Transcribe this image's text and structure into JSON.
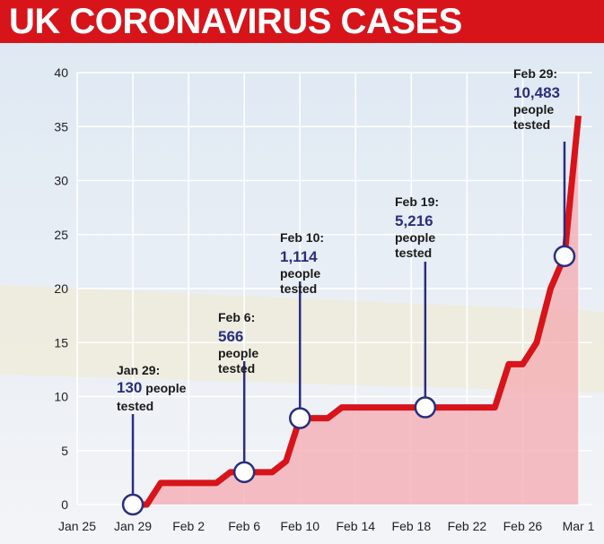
{
  "header": {
    "title": "UK CORONAVIRUS CASES"
  },
  "chart_data": {
    "type": "area",
    "title": "UK CORONAVIRUS CASES",
    "xlabel": "",
    "ylabel": "",
    "ylim": [
      0,
      40
    ],
    "yticks": [
      0,
      5,
      10,
      15,
      20,
      25,
      30,
      35,
      40
    ],
    "xticks": [
      "Jan 25",
      "Jan 29",
      "Feb 2",
      "Feb 6",
      "Feb 10",
      "Feb 14",
      "Feb 18",
      "Feb 22",
      "Feb 26",
      "Mar 1"
    ],
    "grid": true,
    "series": [
      {
        "x": [
          "2020-01-29",
          "2020-01-30",
          "2020-01-31",
          "2020-02-01",
          "2020-02-02",
          "2020-02-03",
          "2020-02-04",
          "2020-02-05",
          "2020-02-06",
          "2020-02-07",
          "2020-02-08",
          "2020-02-09",
          "2020-02-10",
          "2020-02-11",
          "2020-02-12",
          "2020-02-13",
          "2020-02-14",
          "2020-02-15",
          "2020-02-16",
          "2020-02-17",
          "2020-02-18",
          "2020-02-19",
          "2020-02-20",
          "2020-02-21",
          "2020-02-22",
          "2020-02-23",
          "2020-02-24",
          "2020-02-25",
          "2020-02-26",
          "2020-02-27",
          "2020-02-28",
          "2020-02-29",
          "2020-03-01"
        ],
        "values": [
          0,
          0,
          2,
          2,
          2,
          2,
          2,
          3,
          3,
          3,
          3,
          4,
          8,
          8,
          8,
          9,
          9,
          9,
          9,
          9,
          9,
          9,
          9,
          9,
          9,
          9,
          9,
          13,
          13,
          15,
          20,
          23,
          36
        ]
      }
    ],
    "annotations": [
      {
        "x": "2020-01-29",
        "y": 0,
        "date": "Jan 29:",
        "number": "130",
        "text": " people",
        "text2": "tested"
      },
      {
        "x": "2020-02-06",
        "y": 3,
        "date": "Feb 6:",
        "number": "566",
        "text": "people",
        "text2": "tested"
      },
      {
        "x": "2020-02-10",
        "y": 8,
        "date": "Feb 10:",
        "number": "1,114",
        "text": "people",
        "text2": "tested"
      },
      {
        "x": "2020-02-19",
        "y": 9,
        "date": "Feb 19:",
        "number": "5,216",
        "text": "people",
        "text2": "tested"
      },
      {
        "x": "2020-02-29",
        "y": 23,
        "date": "Feb 29:",
        "number": "10,483",
        "text": "people",
        "text2": "tested"
      }
    ],
    "colors": {
      "line": "#d7141a",
      "fill": "#f4aab0",
      "grid": "#ffffff",
      "marker": "#2b2e7e",
      "number": "#2b2e7e",
      "header": "#d7141a"
    }
  }
}
